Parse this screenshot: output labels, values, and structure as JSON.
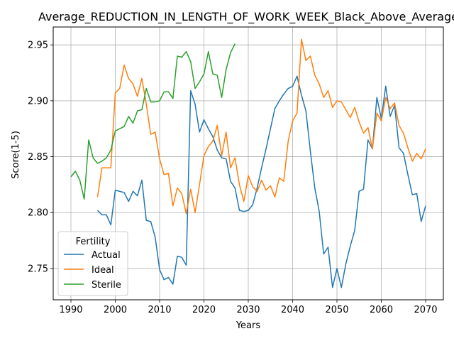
{
  "chart_data": {
    "type": "line",
    "title": "Average_REDUCTION_IN_LENGTH_OF_WORK_WEEK_Black_Above_Average",
    "xlabel": "Years",
    "ylabel": "Score(1-5)",
    "xlim": [
      1986,
      2074
    ],
    "ylim": [
      2.722,
      2.966
    ],
    "xticks": [
      1990,
      2000,
      2010,
      2020,
      2030,
      2040,
      2050,
      2060,
      2070
    ],
    "yticks": [
      2.75,
      2.8,
      2.85,
      2.9,
      2.95
    ],
    "ytick_labels": [
      "2.75",
      "2.80",
      "2.85",
      "2.90",
      "2.95"
    ],
    "grid": true,
    "legend": {
      "title": "Fertility",
      "placement": "lower-left"
    },
    "series": [
      {
        "name": "Actual",
        "color": "#1f77b4",
        "x": [
          1996,
          1997,
          1998,
          1999,
          2000,
          2001,
          2002,
          2003,
          2004,
          2005,
          2006,
          2007,
          2008,
          2009,
          2010,
          2011,
          2012,
          2013,
          2014,
          2015,
          2016,
          2017,
          2018,
          2019,
          2020,
          2021,
          2022,
          2023,
          2024,
          2025,
          2026,
          2027,
          2028,
          2029,
          2030,
          2031,
          2032,
          2033,
          2034,
          2035,
          2036,
          2037,
          2038,
          2039,
          2040,
          2041,
          2042,
          2043,
          2044,
          2045,
          2046,
          2047,
          2048,
          2049,
          2050,
          2051,
          2052,
          2053,
          2054,
          2055,
          2056,
          2057,
          2058,
          2059,
          2060,
          2061,
          2062,
          2063,
          2064,
          2065,
          2066,
          2067,
          2068,
          2069,
          2070
        ],
        "values": [
          2.802,
          2.798,
          2.798,
          2.789,
          2.82,
          2.819,
          2.818,
          2.81,
          2.819,
          2.815,
          2.829,
          2.793,
          2.792,
          2.778,
          2.749,
          2.74,
          2.742,
          2.736,
          2.761,
          2.76,
          2.753,
          2.909,
          2.897,
          2.872,
          2.883,
          2.875,
          2.868,
          2.856,
          2.849,
          2.848,
          2.828,
          2.822,
          2.802,
          2.801,
          2.802,
          2.807,
          2.822,
          2.84,
          2.857,
          2.875,
          2.893,
          2.9,
          2.906,
          2.911,
          2.913,
          2.922,
          2.905,
          2.891,
          2.855,
          2.822,
          2.801,
          2.763,
          2.769,
          2.733,
          2.75,
          2.733,
          2.754,
          2.77,
          2.784,
          2.819,
          2.821,
          2.865,
          2.857,
          2.903,
          2.884,
          2.913,
          2.886,
          2.896,
          2.858,
          2.853,
          2.834,
          2.816,
          2.817,
          2.792,
          2.806
        ]
      },
      {
        "name": "Ideal",
        "color": "#ff7f0e",
        "x": [
          1996,
          1997,
          1998,
          1999,
          2000,
          2001,
          2002,
          2003,
          2004,
          2005,
          2006,
          2007,
          2008,
          2009,
          2010,
          2011,
          2012,
          2013,
          2014,
          2015,
          2016,
          2017,
          2018,
          2019,
          2020,
          2021,
          2022,
          2023,
          2024,
          2025,
          2026,
          2027,
          2028,
          2029,
          2030,
          2031,
          2032,
          2033,
          2034,
          2035,
          2036,
          2037,
          2038,
          2039,
          2040,
          2041,
          2042,
          2043,
          2044,
          2045,
          2046,
          2047,
          2048,
          2049,
          2050,
          2051,
          2052,
          2053,
          2054,
          2055,
          2056,
          2057,
          2058,
          2059,
          2060,
          2061,
          2062,
          2063,
          2064,
          2065,
          2066,
          2067,
          2068,
          2069,
          2070
        ],
        "values": [
          2.814,
          2.84,
          2.84,
          2.84,
          2.907,
          2.911,
          2.932,
          2.92,
          2.915,
          2.904,
          2.92,
          2.897,
          2.87,
          2.872,
          2.848,
          2.834,
          2.835,
          2.806,
          2.822,
          2.817,
          2.799,
          2.821,
          2.8,
          2.825,
          2.851,
          2.859,
          2.864,
          2.878,
          2.851,
          2.872,
          2.84,
          2.849,
          2.825,
          2.81,
          2.833,
          2.823,
          2.819,
          2.829,
          2.82,
          2.824,
          2.814,
          2.831,
          2.828,
          2.864,
          2.882,
          2.889,
          2.955,
          2.936,
          2.94,
          2.923,
          2.915,
          2.903,
          2.909,
          2.894,
          2.9,
          2.899,
          2.892,
          2.885,
          2.894,
          2.881,
          2.871,
          2.876,
          2.857,
          2.889,
          2.882,
          2.903,
          2.893,
          2.898,
          2.878,
          2.871,
          2.858,
          2.846,
          2.853,
          2.848,
          2.857
        ]
      },
      {
        "name": "Sterile",
        "color": "#2ca02c",
        "x": [
          1990,
          1991,
          1992,
          1993,
          1994,
          1995,
          1996,
          1997,
          1998,
          1999,
          2000,
          2001,
          2002,
          2003,
          2004,
          2005,
          2006,
          2007,
          2008,
          2009,
          2010,
          2011,
          2012,
          2013,
          2014,
          2015,
          2016,
          2017,
          2018,
          2019,
          2020,
          2021,
          2022,
          2023,
          2024,
          2025,
          2026,
          2027
        ],
        "values": [
          2.832,
          2.837,
          2.829,
          2.812,
          2.865,
          2.849,
          2.844,
          2.846,
          2.849,
          2.856,
          2.873,
          2.875,
          2.877,
          2.886,
          2.88,
          2.891,
          2.892,
          2.911,
          2.899,
          2.899,
          2.9,
          2.908,
          2.908,
          2.902,
          2.94,
          2.939,
          2.944,
          2.935,
          2.911,
          2.917,
          2.924,
          2.944,
          2.924,
          2.923,
          2.903,
          2.928,
          2.943,
          2.951
        ]
      }
    ]
  }
}
